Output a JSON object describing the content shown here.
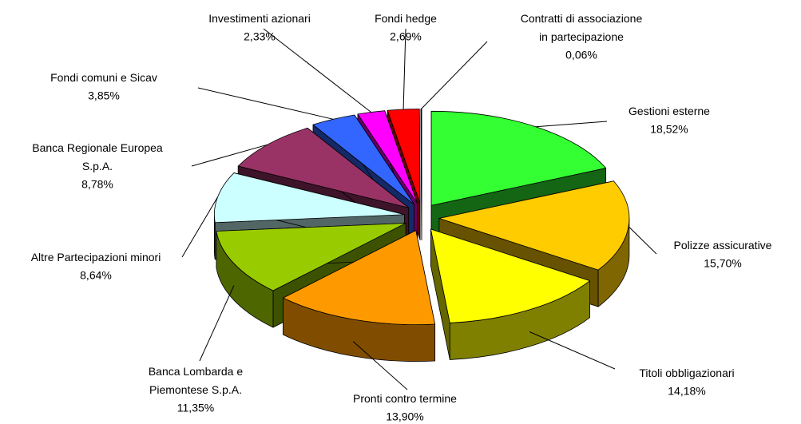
{
  "chart_data": {
    "type": "pie3d",
    "categories": [
      "Gestioni esterne",
      "Polizze assicurative",
      "Titoli obbligazionari",
      "Pronti contro termine",
      "Banca Lombarda e\nPiemontese S.p.A.",
      "Altre Partecipazioni minori",
      "Banca Regionale Europea\nS.p.A.",
      "Fondi comuni e Sicav",
      "Investimenti azionari",
      "Fondi hedge",
      "Contratti di associazione\nin partecipazione"
    ],
    "values": [
      18.52,
      15.7,
      14.18,
      13.9,
      11.35,
      8.64,
      8.78,
      3.85,
      2.33,
      2.69,
      0.06
    ],
    "value_labels": [
      "18,52%",
      "15,70%",
      "14,18%",
      "13,90%",
      "11,35%",
      "8,64%",
      "8,78%",
      "3,85%",
      "2,33%",
      "2,69%",
      "0,06%"
    ],
    "colors": [
      "#33ff33",
      "#ffcc00",
      "#ffff00",
      "#ff9900",
      "#99cc00",
      "#ccffff",
      "#993366",
      "#3366ff",
      "#ff00ff",
      "#ff0000",
      "#990000"
    ]
  }
}
